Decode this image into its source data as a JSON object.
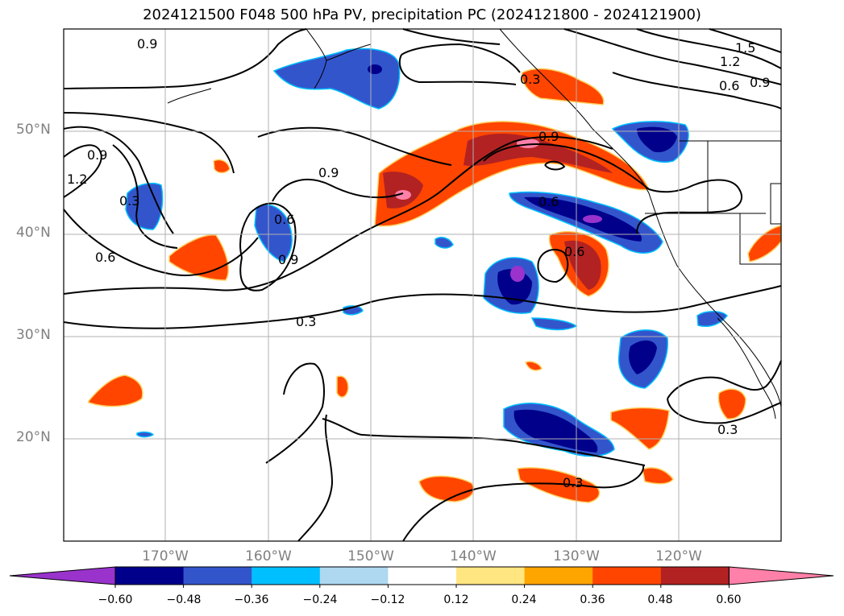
{
  "title": "2024121500 F048 500 hPa PV, precipitation PC (2024121800 - 2024121900)",
  "map": {
    "lat_labels": [
      "50°N",
      "40°N",
      "30°N",
      "20°N"
    ],
    "lon_labels": [
      "170°W",
      "160°W",
      "150°W",
      "140°W",
      "130°W",
      "120°W"
    ],
    "contour_labels": [
      "0.9",
      "0.9",
      "0.9",
      "0.9",
      "1.2",
      "1.5",
      "1.2",
      "0.6",
      "0.9",
      "0.3",
      "0.3",
      "0.6",
      "0.6",
      "0.6",
      "0.9",
      "0.6",
      "0.3",
      "0.3",
      "0.3"
    ],
    "extent": {
      "lon": [
        -180,
        -110
      ],
      "lat": [
        10,
        60
      ]
    }
  },
  "colorbar": {
    "ticks": [
      "−0.60",
      "−0.48",
      "−0.36",
      "−0.24",
      "−0.12",
      "0.12",
      "0.24",
      "0.36",
      "0.48",
      "0.60"
    ],
    "colors": [
      "#9933cc",
      "#00008b",
      "#3355cc",
      "#00bfff",
      "#add8f0",
      "#ffffff",
      "#ffe680",
      "#ffa500",
      "#ff4500",
      "#b22222",
      "#ff80a8"
    ]
  }
}
